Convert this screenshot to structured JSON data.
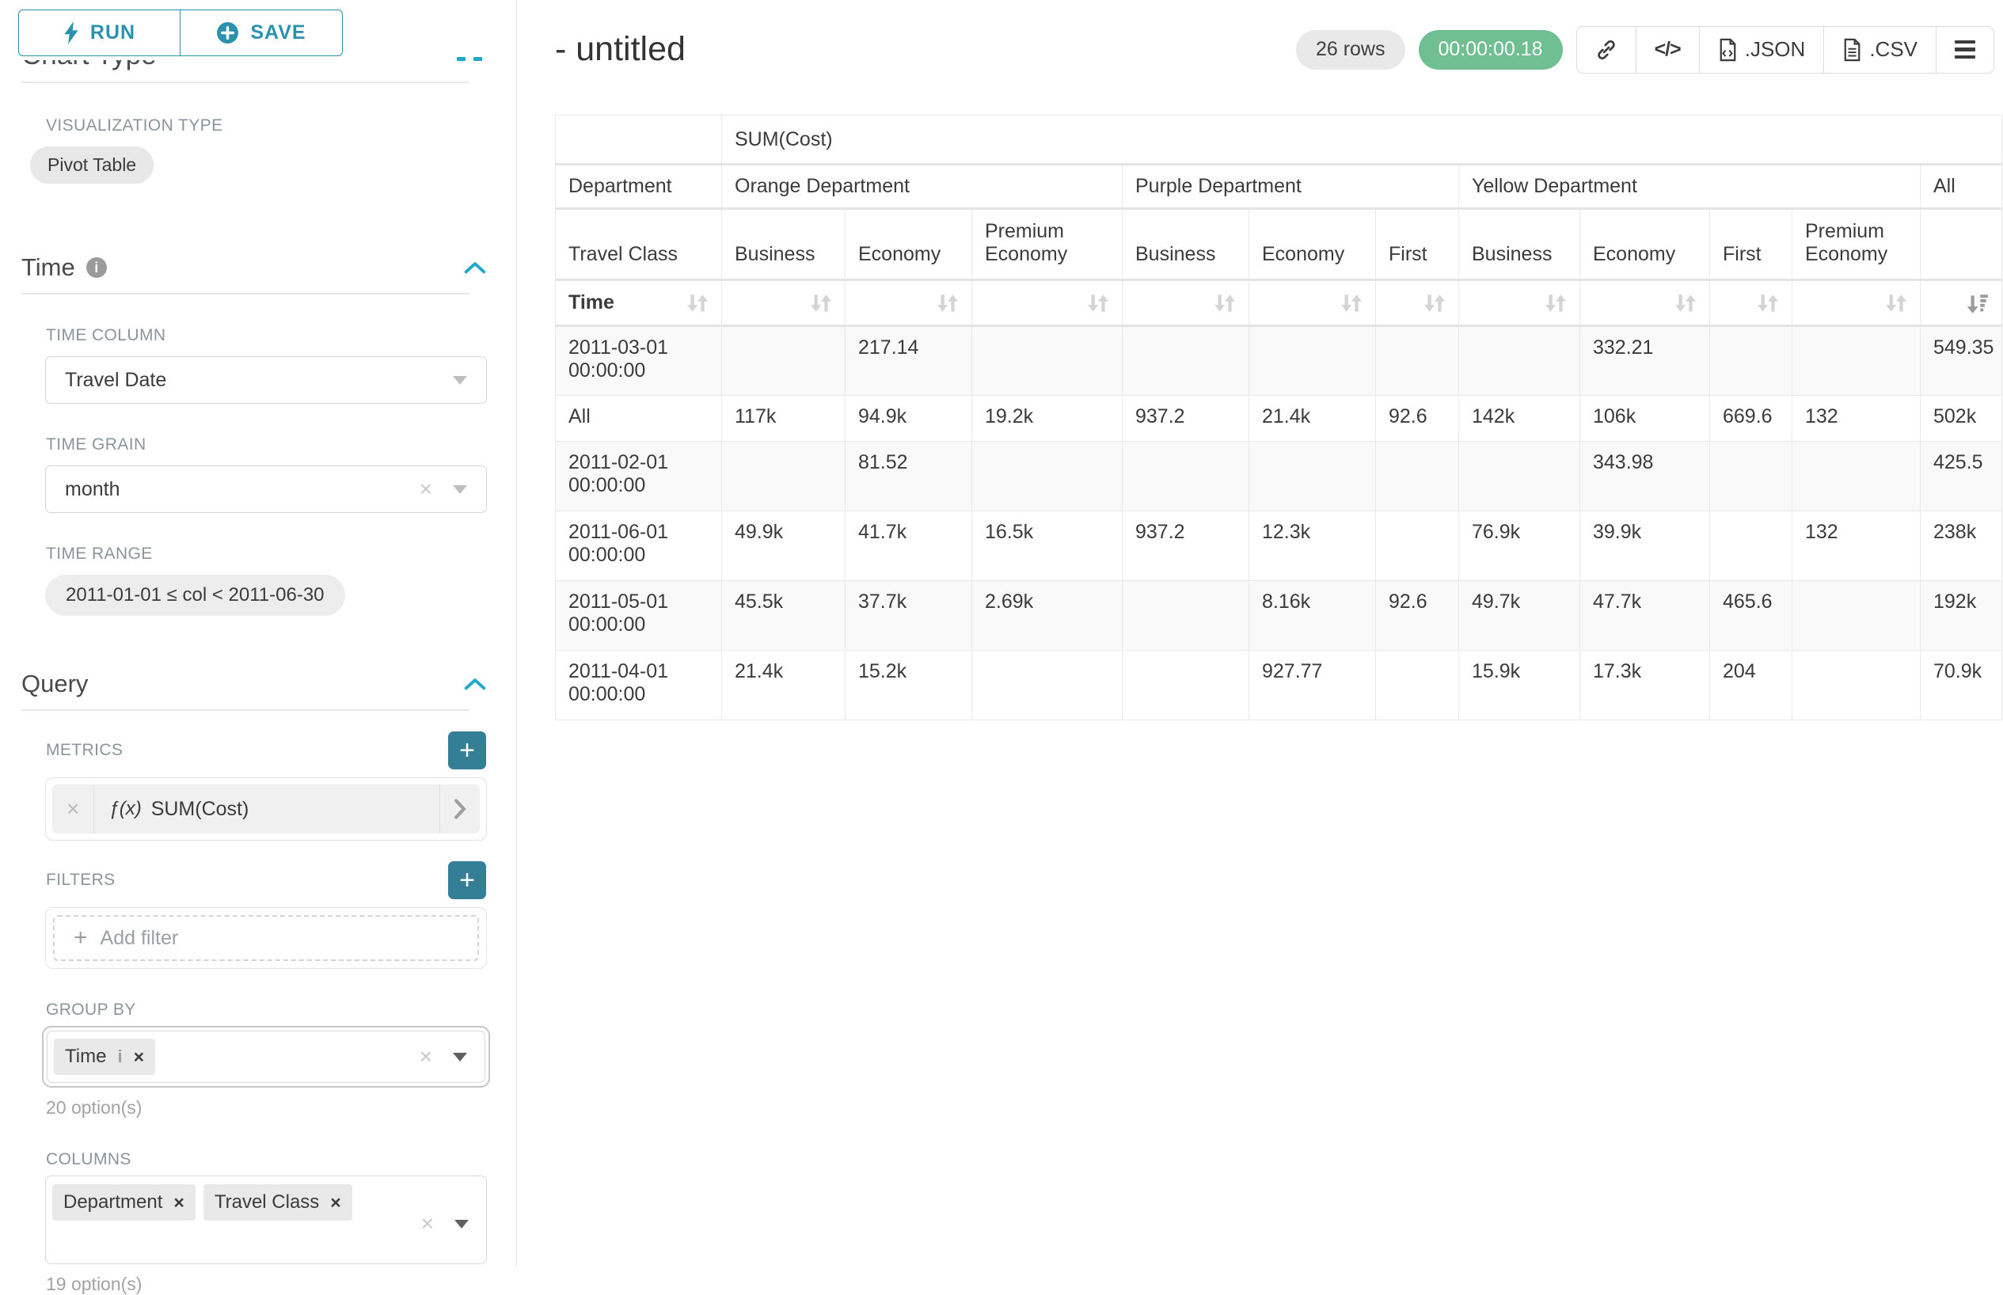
{
  "panel": {
    "run_label": "RUN",
    "save_label": "SAVE",
    "chart_type_heading": "Chart Type",
    "visualization_type_label": "VISUALIZATION TYPE",
    "visualization_type_value": "Pivot Table",
    "time": {
      "heading": "Time",
      "time_column_label": "TIME COLUMN",
      "time_column_value": "Travel Date",
      "time_grain_label": "TIME GRAIN",
      "time_grain_value": "month",
      "time_range_label": "TIME RANGE",
      "time_range_value": "2011-01-01 ≤ col < 2011-06-30"
    },
    "query": {
      "heading": "Query",
      "metrics_label": "METRICS",
      "metric_function_icon": "ƒ(x)",
      "metric_value": "SUM(Cost)",
      "filters_label": "FILTERS",
      "add_filter_label": "Add filter",
      "group_by_label": "GROUP BY",
      "group_by_tags": [
        {
          "label": "Time",
          "has_info": true
        }
      ],
      "group_by_options_hint": "20 option(s)",
      "columns_label": "COLUMNS",
      "columns_tags": [
        {
          "label": "Department"
        },
        {
          "label": "Travel Class"
        }
      ],
      "columns_options_hint": "19 option(s)"
    }
  },
  "header": {
    "title": "- untitled",
    "row_count_badge": "26 rows",
    "duration_badge": "00:00:00.18",
    "export_json_label": ".JSON",
    "export_csv_label": ".CSV"
  },
  "icons": {
    "run": "lightning-bolt",
    "save": "plus-circle",
    "section_collapse": "chevron-up",
    "toolbar": [
      "link",
      "code",
      "json-file",
      "csv-file",
      "menu"
    ],
    "sort_inactive": "sort-up-down-arrows",
    "sort_active": "sort-amount-desc"
  },
  "colors": {
    "primary": "#2b92ae",
    "add_button": "#347e96",
    "success_badge": "#6fbf92",
    "badge_bg": "#e9e9e9"
  },
  "chart_data": {
    "type": "table",
    "metric_header": "SUM(Cost)",
    "row_dim_label": "Department",
    "col_dim_label": "Travel Class",
    "time_dim_label": "Time",
    "col_groups": [
      {
        "label": "Orange Department",
        "children": [
          "Business",
          "Economy",
          "Premium Economy"
        ]
      },
      {
        "label": "Purple Department",
        "children": [
          "Business",
          "Economy",
          "First"
        ]
      },
      {
        "label": "Yellow Department",
        "children": [
          "Business",
          "Economy",
          "First",
          "Premium Economy"
        ]
      },
      {
        "label": "All",
        "children": [
          ""
        ]
      }
    ],
    "rows": [
      {
        "label": "2011-03-01 00:00:00",
        "values": [
          "",
          "217.14",
          "",
          "",
          "",
          "",
          "",
          "332.21",
          "",
          "",
          "549.35"
        ]
      },
      {
        "label": "All",
        "values": [
          "117k",
          "94.9k",
          "19.2k",
          "937.2",
          "21.4k",
          "92.6",
          "142k",
          "106k",
          "669.6",
          "132",
          "502k"
        ]
      },
      {
        "label": "2011-02-01 00:00:00",
        "values": [
          "",
          "81.52",
          "",
          "",
          "",
          "",
          "",
          "343.98",
          "",
          "",
          "425.5"
        ]
      },
      {
        "label": "2011-06-01 00:00:00",
        "values": [
          "49.9k",
          "41.7k",
          "16.5k",
          "937.2",
          "12.3k",
          "",
          "76.9k",
          "39.9k",
          "",
          "132",
          "238k"
        ]
      },
      {
        "label": "2011-05-01 00:00:00",
        "values": [
          "45.5k",
          "37.7k",
          "2.69k",
          "",
          "8.16k",
          "92.6",
          "49.7k",
          "47.7k",
          "465.6",
          "",
          "192k"
        ]
      },
      {
        "label": "2011-04-01 00:00:00",
        "values": [
          "21.4k",
          "15.2k",
          "",
          "",
          "927.77",
          "",
          "15.9k",
          "17.3k",
          "204",
          "",
          "70.9k"
        ]
      }
    ]
  }
}
